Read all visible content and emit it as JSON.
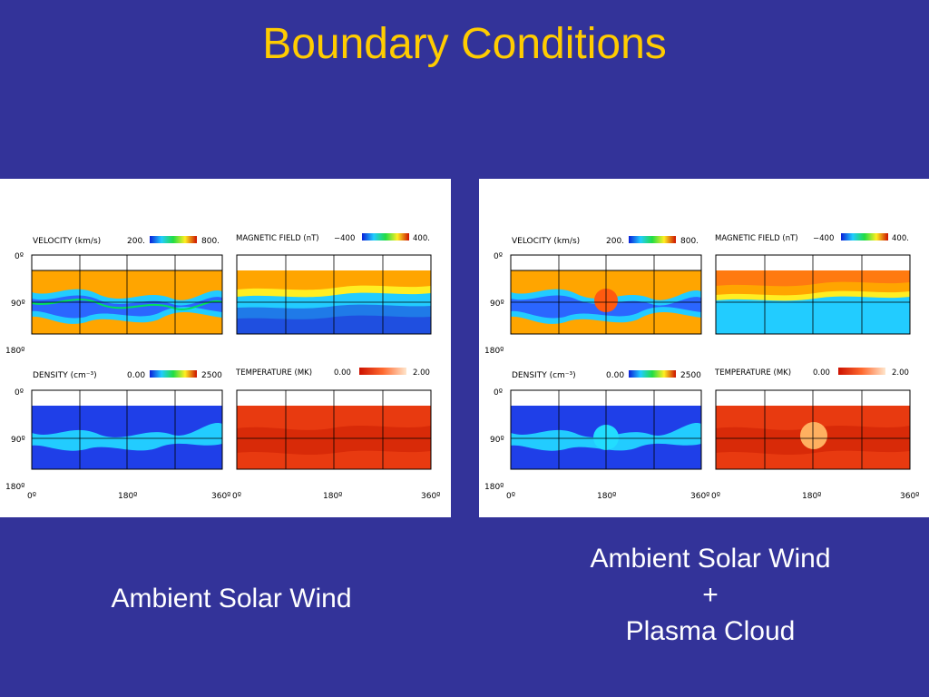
{
  "slide": {
    "title": "Boundary Conditions",
    "captions": {
      "left": "Ambient Solar Wind",
      "right_line1": "Ambient Solar Wind",
      "right_line2": "+",
      "right_line3": "Plasma Cloud"
    }
  },
  "panel_text": {
    "velocity_label": "VELOCITY (km/s)",
    "velocity_min": "200.",
    "velocity_max": "800.",
    "magnetic_label": "MAGNETIC FIELD (nT)",
    "magnetic_min": "−400",
    "magnetic_max": "400.",
    "density_label": "DENSITY (cm⁻³)",
    "density_min": "0.00",
    "density_max": "2500",
    "temperature_label": "TEMPERATURE (MK)",
    "temperature_min": "0.00",
    "temperature_max": "2.00",
    "lat_0": "0º",
    "lat_90": "90º",
    "lat_180": "180º",
    "lon_0": "0º",
    "lon_180": "180º",
    "lon_360": "360º"
  },
  "colors": {
    "background": "#333399",
    "title": "#ffcc00",
    "velocity_base": "#ffa500",
    "magnetic_low": "#1f4fe0",
    "magnetic_high": "#ffa500",
    "density_base": "#1f3fe8",
    "temperature_base": "#e83a10",
    "cloud_velocity": "#ff5a10",
    "cloud_density": "#22ddff",
    "cloud_temperature": "#ffb060"
  }
}
